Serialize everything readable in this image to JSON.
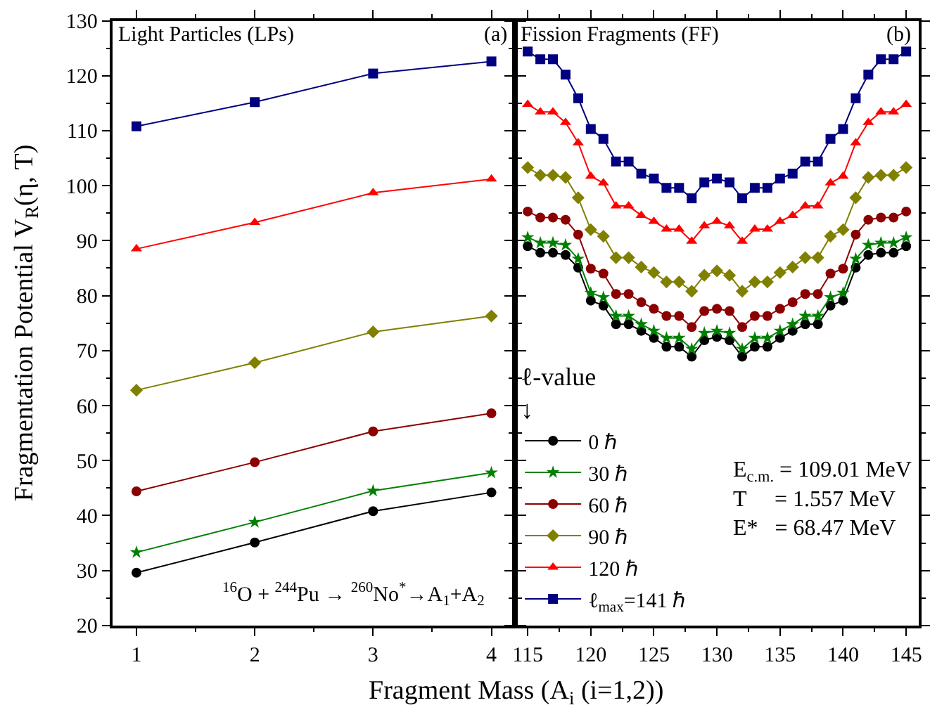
{
  "chart_data": [
    {
      "type": "line",
      "title": "Light Particles (LPs)",
      "ylabel": "Fragmentation Potential V$_{R}$(η, T)",
      "xlabel": "Fragment Mass (A$_{i}$ (i=1,2))",
      "annotations": [
        "(a)",
        "$^{16}$O + $^{244}$Pu → $^{260}$No$^{*}$→A$_{1}$+A$_{2}$"
      ],
      "x": [
        1,
        2,
        3,
        4
      ],
      "xlim": [
        0.8,
        4.2
      ],
      "xticks": [
        1,
        2,
        3,
        4
      ],
      "ylim": [
        20,
        130
      ],
      "yticks": [
        20,
        30,
        40,
        50,
        60,
        70,
        80,
        90,
        100,
        110,
        120,
        130
      ],
      "grid": false,
      "legend": false,
      "line_style": "solid",
      "series": [
        {
          "color": "#000000",
          "marker": "circle",
          "values": [
            29.6,
            35.1,
            40.8,
            44.2
          ]
        },
        {
          "color": "#008000",
          "marker": "star",
          "values": [
            33.3,
            38.8,
            44.5,
            47.8
          ]
        },
        {
          "color": "#8b0000",
          "marker": "circle",
          "values": [
            44.4,
            49.7,
            55.3,
            58.6
          ]
        },
        {
          "color": "#808000",
          "marker": "diamond",
          "values": [
            62.8,
            67.8,
            73.4,
            76.3
          ]
        },
        {
          "color": "#ff0000",
          "marker": "triangle",
          "values": [
            88.5,
            93.3,
            98.7,
            101.2
          ]
        },
        {
          "color": "#000080",
          "marker": "square",
          "values": [
            110.8,
            115.2,
            120.4,
            122.6
          ]
        }
      ]
    },
    {
      "type": "line",
      "title": "Fission Fragments (FF)",
      "legend_title": "ℓ-value\n↓",
      "annotations": [
        "(b)",
        "E$_{c.m.}$ = 109.01 MeV\nT     = 1.557 MeV\nE*   = 68.47 MeV"
      ],
      "x": [
        115,
        116,
        117,
        118,
        119,
        120,
        121,
        122,
        123,
        124,
        125,
        126,
        127,
        128,
        129,
        130,
        131,
        132,
        133,
        134,
        135,
        136,
        137,
        138,
        139,
        140,
        141,
        142,
        143,
        144,
        145
      ],
      "xlim": [
        114,
        146
      ],
      "xticks": [
        115,
        120,
        125,
        130,
        135,
        140,
        145
      ],
      "ylim": [
        20,
        130
      ],
      "yticks": [
        20,
        30,
        40,
        50,
        60,
        70,
        80,
        90,
        100,
        110,
        120,
        130
      ],
      "tick_labels": "x",
      "grid": false,
      "legend": "bottom left",
      "line_style": "solid",
      "series": [
        {
          "name": "0 ℏ",
          "color": "#000000",
          "marker": "circle",
          "values": [
            89,
            87.8,
            87.8,
            87.4,
            85.1,
            79.1,
            78.2,
            74.8,
            74.8,
            73.6,
            72.3,
            70.7,
            70.7,
            68.9,
            71.9,
            72.5,
            71.9,
            68.9,
            70.7,
            70.7,
            72.3,
            73.6,
            74.8,
            74.8,
            78.2,
            79.1,
            85.1,
            87.4,
            87.8,
            87.8,
            89
          ]
        },
        {
          "name": "30 ℏ",
          "color": "#008000",
          "marker": "star",
          "values": [
            90.6,
            89.6,
            89.6,
            89.2,
            86.7,
            80.5,
            79.7,
            76.3,
            76.3,
            74.8,
            73.6,
            72.3,
            72.3,
            70.3,
            73.2,
            73.6,
            73.2,
            70.3,
            72.3,
            72.3,
            73.6,
            74.8,
            76.3,
            76.3,
            79.7,
            80.5,
            86.7,
            89.2,
            89.6,
            89.6,
            90.6
          ]
        },
        {
          "name": "60 ℏ",
          "color": "#8b0000",
          "marker": "circle",
          "values": [
            95.3,
            94.2,
            94.2,
            93.8,
            91.1,
            84.9,
            84,
            80.3,
            80.3,
            78.8,
            77.6,
            76.3,
            76.3,
            74.3,
            77.2,
            77.6,
            77.2,
            74.3,
            76.3,
            76.3,
            77.6,
            78.8,
            80.3,
            80.3,
            84,
            84.9,
            91.1,
            93.8,
            94.2,
            94.2,
            95.3
          ]
        },
        {
          "name": "90 ℏ",
          "color": "#808000",
          "marker": "diamond",
          "values": [
            103.3,
            101.9,
            101.9,
            101.5,
            97.8,
            92,
            90.8,
            86.9,
            86.9,
            85.2,
            84.2,
            82.5,
            82.5,
            80.8,
            83.7,
            84.5,
            83.7,
            80.8,
            82.5,
            82.5,
            84.2,
            85.2,
            86.9,
            86.9,
            90.8,
            92,
            97.8,
            101.5,
            101.9,
            101.9,
            103.3
          ]
        },
        {
          "name": "120 ℏ",
          "color": "#ff0000",
          "marker": "triangle",
          "values": [
            114.8,
            113.4,
            113.4,
            111.5,
            107.8,
            101.7,
            100.5,
            96.3,
            96.3,
            94.6,
            93.5,
            92.1,
            92.1,
            89.9,
            92.7,
            93.5,
            92.7,
            89.9,
            92.1,
            92.1,
            93.5,
            94.6,
            96.3,
            96.3,
            100.5,
            101.7,
            107.8,
            111.5,
            113.4,
            113.4,
            114.8
          ]
        },
        {
          "name": "ℓ$_{max}$=141 ℏ",
          "color": "#000080",
          "marker": "square",
          "values": [
            124.4,
            123,
            123,
            120.2,
            115.9,
            110.3,
            108.5,
            104.4,
            104.4,
            102.2,
            101.3,
            99.6,
            99.6,
            97.7,
            100.6,
            101.3,
            100.6,
            97.7,
            99.6,
            99.6,
            101.3,
            102.2,
            104.4,
            104.4,
            108.5,
            110.3,
            115.9,
            120.2,
            123,
            123,
            124.4
          ]
        }
      ]
    }
  ]
}
